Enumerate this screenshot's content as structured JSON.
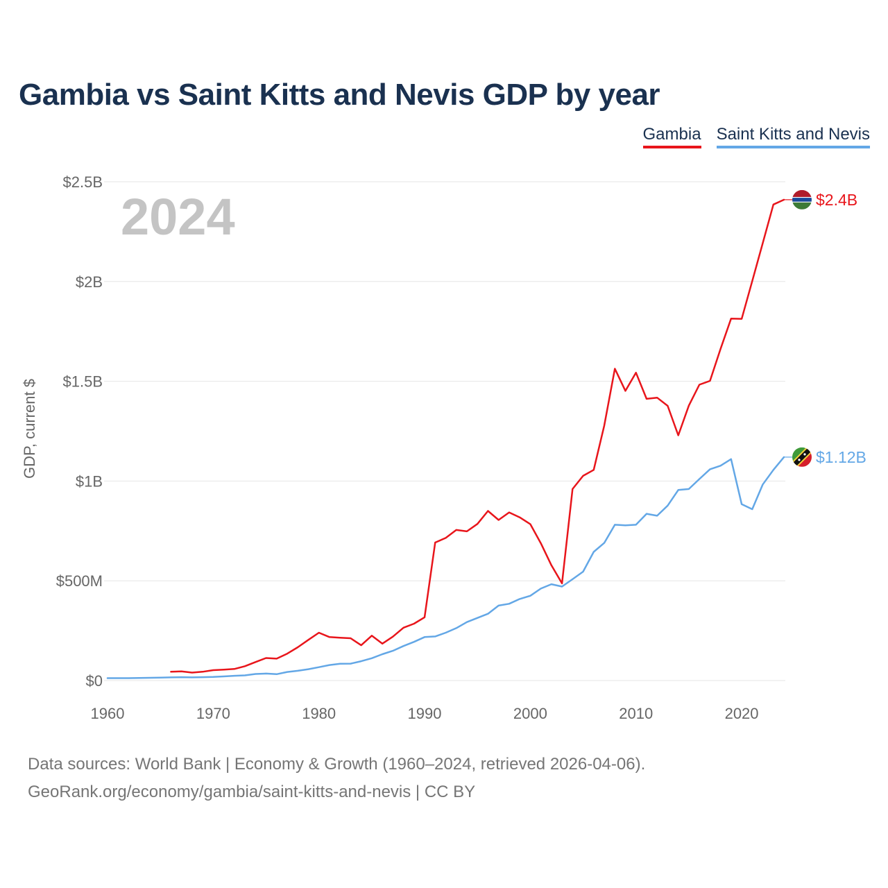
{
  "title": "Gambia vs Saint Kitts and Nevis GDP by year",
  "year_display": "2024",
  "footer": {
    "line1": "Data sources: World Bank | Economy & Growth (1960–2024, retrieved 2026-04-06).",
    "line2": "GeoRank.org/economy/gambia/saint-kitts-and-nevis | CC BY"
  },
  "chart_data": {
    "type": "line",
    "title": "Gambia vs Saint Kitts and Nevis GDP by year",
    "xlabel": "",
    "ylabel": "GDP, current $",
    "xlim": [
      1960,
      2024
    ],
    "ylim": [
      0,
      2500000000
    ],
    "x_ticks": [
      1960,
      1970,
      1980,
      1990,
      2000,
      2010,
      2020
    ],
    "x_tick_labels": [
      "1960",
      "1970",
      "1980",
      "1990",
      "2000",
      "2010",
      "2020"
    ],
    "y_ticks": [
      0,
      500000000,
      1000000000,
      1500000000,
      2000000000,
      2500000000
    ],
    "y_tick_labels": [
      "$0",
      "$500M",
      "$1B",
      "$1.5B",
      "$2B",
      "$2.5B"
    ],
    "grid": true,
    "legend_position": "top-right",
    "series": [
      {
        "name": "Gambia",
        "color": "#e8151b",
        "end_label": "$2.4B",
        "flag": "gambia-flag",
        "x": [
          1966,
          1967,
          1968,
          1969,
          1970,
          1971,
          1972,
          1973,
          1974,
          1975,
          1976,
          1977,
          1978,
          1979,
          1980,
          1981,
          1982,
          1983,
          1984,
          1985,
          1986,
          1987,
          1988,
          1989,
          1990,
          1991,
          1992,
          1993,
          1994,
          1995,
          1996,
          1997,
          1998,
          1999,
          2000,
          2001,
          2002,
          2003,
          2004,
          2005,
          2006,
          2007,
          2008,
          2009,
          2010,
          2011,
          2012,
          2013,
          2014,
          2015,
          2016,
          2017,
          2018,
          2019,
          2020,
          2021,
          2022,
          2023,
          2024
        ],
        "values": [
          44000000,
          46000000,
          40000000,
          44000000,
          52000000,
          55000000,
          58000000,
          72000000,
          93000000,
          113000000,
          110000000,
          135000000,
          167000000,
          204000000,
          240000000,
          218000000,
          215000000,
          212000000,
          177000000,
          225000000,
          185000000,
          220000000,
          265000000,
          285000000,
          317000000,
          692000000,
          715000000,
          755000000,
          748000000,
          785000000,
          850000000,
          805000000,
          843000000,
          818000000,
          784000000,
          688000000,
          578000000,
          487000000,
          960000000,
          1026000000,
          1056000000,
          1278000000,
          1563000000,
          1452000000,
          1543000000,
          1412000000,
          1418000000,
          1377000000,
          1229000000,
          1378000000,
          1483000000,
          1502000000,
          1662000000,
          1814000000,
          1813000000,
          2002000000,
          2193000000,
          2386000000,
          2410000000
        ]
      },
      {
        "name": "Saint Kitts and Nevis",
        "color": "#63a7e6",
        "end_label": "$1.12B",
        "flag": "saint-kitts-and-nevis-flag",
        "x": [
          1960,
          1961,
          1962,
          1963,
          1964,
          1965,
          1966,
          1967,
          1968,
          1969,
          1970,
          1971,
          1972,
          1973,
          1974,
          1975,
          1976,
          1977,
          1978,
          1979,
          1980,
          1981,
          1982,
          1983,
          1984,
          1985,
          1986,
          1987,
          1988,
          1989,
          1990,
          1991,
          1992,
          1993,
          1994,
          1995,
          1996,
          1997,
          1998,
          1999,
          2000,
          2001,
          2002,
          2003,
          2004,
          2005,
          2006,
          2007,
          2008,
          2009,
          2010,
          2011,
          2012,
          2013,
          2014,
          2015,
          2016,
          2017,
          2018,
          2019,
          2020,
          2021,
          2022,
          2023,
          2024
        ],
        "values": [
          12000000,
          12000000,
          12000000,
          13000000,
          14000000,
          15000000,
          16000000,
          17000000,
          16000000,
          17000000,
          18000000,
          21000000,
          24000000,
          26000000,
          33000000,
          35000000,
          32000000,
          43000000,
          49000000,
          57000000,
          67000000,
          78000000,
          84000000,
          85000000,
          97000000,
          112000000,
          132000000,
          149000000,
          173000000,
          194000000,
          218000000,
          221000000,
          240000000,
          263000000,
          293000000,
          314000000,
          335000000,
          376000000,
          385000000,
          409000000,
          425000000,
          461000000,
          483000000,
          471000000,
          508000000,
          546000000,
          645000000,
          690000000,
          781000000,
          778000000,
          781000000,
          836000000,
          826000000,
          877000000,
          955000000,
          960000000,
          1010000000,
          1059000000,
          1077000000,
          1110000000,
          884000000,
          859000000,
          983000000,
          1056000000,
          1120000000
        ]
      }
    ]
  }
}
